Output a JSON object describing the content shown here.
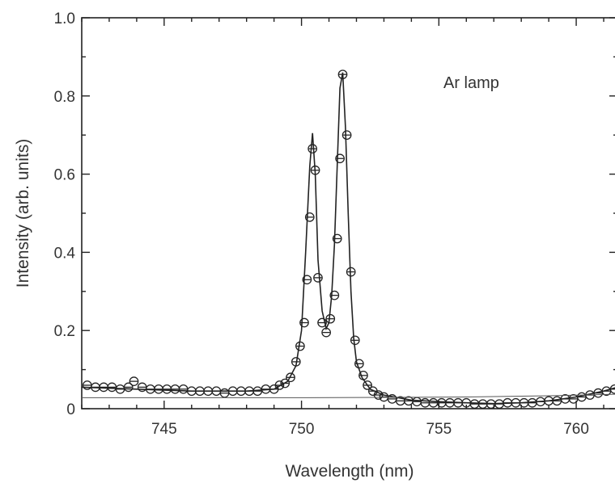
{
  "chart_data": {
    "type": "scatter",
    "xlabel": "Wavelength (nm)",
    "ylabel": "Intensity (arb. units)",
    "annotation": "Ar lamp",
    "xlim": [
      742,
      761.5
    ],
    "ylim": [
      0,
      1.0
    ],
    "x_ticks": [
      745,
      750,
      755,
      760
    ],
    "x_tick_labels": [
      "745",
      "750",
      "755",
      "760"
    ],
    "y_ticks": [
      0,
      0.2,
      0.4,
      0.6,
      0.8,
      1.0
    ],
    "y_tick_labels": [
      "0",
      "0.2",
      "0.4",
      "0.6",
      "0.8",
      "1.0"
    ],
    "grid": false,
    "series": [
      {
        "style": "markers",
        "x": [
          742.2,
          742.5,
          742.8,
          743.1,
          743.4,
          743.7,
          743.9,
          744.2,
          744.5,
          744.8,
          745.1,
          745.4,
          745.7,
          746.0,
          746.3,
          746.6,
          746.9,
          747.2,
          747.5,
          747.8,
          748.1,
          748.4,
          748.7,
          749.0,
          749.2,
          749.4,
          749.6,
          749.8,
          749.95,
          750.1,
          750.2,
          750.3,
          750.4,
          750.5,
          750.6,
          750.75,
          750.9,
          751.05,
          751.2,
          751.3,
          751.4,
          751.5,
          751.65,
          751.8,
          751.95,
          752.1,
          752.25,
          752.4,
          752.6,
          752.8,
          753.0,
          753.3,
          753.6,
          753.9,
          754.2,
          754.5,
          754.8,
          755.1,
          755.4,
          755.7,
          756.0,
          756.3,
          756.6,
          756.9,
          757.2,
          757.5,
          757.8,
          758.1,
          758.4,
          758.7,
          759.0,
          759.3,
          759.6,
          759.9,
          760.2,
          760.5,
          760.8,
          761.1,
          761.4
        ],
        "y": [
          0.06,
          0.055,
          0.055,
          0.055,
          0.05,
          0.055,
          0.07,
          0.055,
          0.05,
          0.05,
          0.05,
          0.05,
          0.05,
          0.045,
          0.045,
          0.045,
          0.045,
          0.04,
          0.045,
          0.045,
          0.045,
          0.045,
          0.05,
          0.05,
          0.06,
          0.065,
          0.08,
          0.12,
          0.16,
          0.22,
          0.33,
          0.49,
          0.665,
          0.61,
          0.335,
          0.22,
          0.195,
          0.23,
          0.29,
          0.435,
          0.64,
          0.855,
          0.7,
          0.35,
          0.175,
          0.115,
          0.085,
          0.06,
          0.045,
          0.035,
          0.03,
          0.025,
          0.02,
          0.02,
          0.018,
          0.015,
          0.015,
          0.015,
          0.015,
          0.015,
          0.015,
          0.012,
          0.012,
          0.012,
          0.012,
          0.015,
          0.015,
          0.015,
          0.015,
          0.018,
          0.02,
          0.02,
          0.025,
          0.025,
          0.03,
          0.035,
          0.04,
          0.045,
          0.05
        ]
      },
      {
        "style": "line",
        "x": [
          742,
          744,
          746,
          748,
          749,
          749.5,
          749.8,
          750.0,
          750.15,
          750.3,
          750.4,
          750.5,
          750.6,
          750.75,
          750.9,
          751.0,
          751.1,
          751.2,
          751.3,
          751.4,
          751.5,
          751.6,
          751.7,
          751.8,
          751.9,
          752.0,
          752.2,
          752.5,
          753.0,
          754.0,
          755.0,
          756.0,
          757.0,
          758.0,
          759.0,
          760.0,
          761.0,
          761.5
        ],
        "y": [
          0.055,
          0.05,
          0.045,
          0.045,
          0.05,
          0.07,
          0.11,
          0.2,
          0.4,
          0.62,
          0.705,
          0.6,
          0.38,
          0.25,
          0.205,
          0.22,
          0.29,
          0.42,
          0.62,
          0.82,
          0.86,
          0.72,
          0.5,
          0.3,
          0.18,
          0.12,
          0.08,
          0.05,
          0.035,
          0.022,
          0.018,
          0.015,
          0.013,
          0.015,
          0.02,
          0.03,
          0.045,
          0.055
        ]
      },
      {
        "style": "baseline",
        "x": [
          742,
          746,
          750,
          753,
          756,
          759,
          761.5
        ],
        "y": [
          0.028,
          0.028,
          0.028,
          0.029,
          0.03,
          0.033,
          0.037
        ]
      }
    ]
  }
}
